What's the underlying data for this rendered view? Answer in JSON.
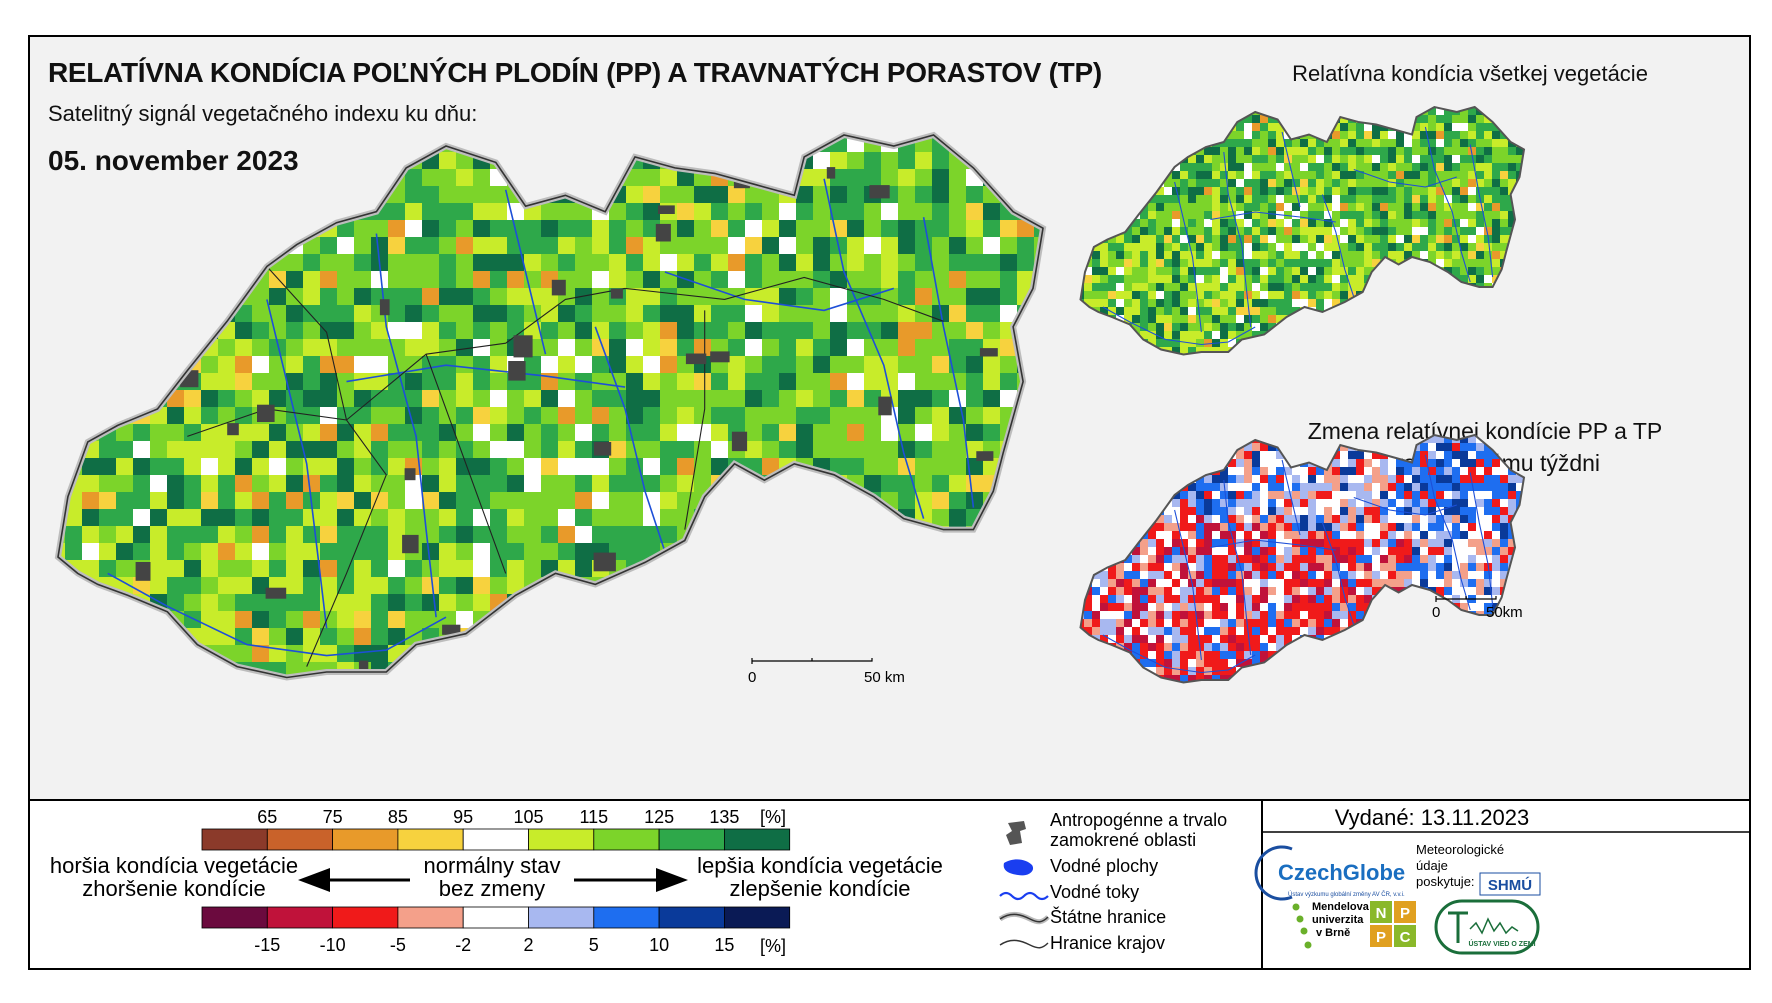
{
  "header": {
    "title": "RELATÍVNA KONDÍCIA POĽNÝCH PLODÍN (PP) A TRAVNATÝCH PORASTOV (TP)",
    "subtitle": "Satelitný signál vegetačného indexu ku dňu:",
    "date": "05. november 2023"
  },
  "insets": {
    "all_vegetation_title": "Relatívna kondícia všetkej vegetácie",
    "change_title_line1": "Zmena relatívnej kondície PP a TP",
    "change_title_line2": "oproti minulému týždni"
  },
  "scalebars": {
    "main": {
      "start": "0",
      "end": "50 km"
    },
    "inset": {
      "start": "0",
      "end": "50km"
    }
  },
  "legend": {
    "condition_ticks": [
      "65",
      "75",
      "85",
      "95",
      "105",
      "115",
      "125",
      "135"
    ],
    "condition_unit": "[%]",
    "condition_colors": [
      "#8b3a2a",
      "#c9622a",
      "#e89a2a",
      "#f7d23e",
      "#ffffff",
      "#c8ec2a",
      "#7cd42a",
      "#2ea84a",
      "#0f6e45"
    ],
    "change_ticks": [
      "-15",
      "-10",
      "-5",
      "-2",
      "2",
      "5",
      "10",
      "15"
    ],
    "change_unit": "[%]",
    "change_colors": [
      "#6b0a3e",
      "#c0123a",
      "#f01a1a",
      "#f4a08a",
      "#ffffff",
      "#a8b8f0",
      "#1e6ef0",
      "#0a3a9a",
      "#0a1a55"
    ],
    "left_line1": "horšia kondícia vegetácie",
    "left_line2": "zhoršenie kondície",
    "center_line1": "normálny stav",
    "center_line2": "bez zmeny",
    "right_line1": "lepšia kondícia vegetácie",
    "right_line2": "zlepšenie kondície"
  },
  "symbols": {
    "urban_line1": "Antropogénne a trvalo",
    "urban_line2": "zamokrené oblasti",
    "water_bodies": "Vodné plochy",
    "rivers": "Vodné toky",
    "state_border": "Štátne hranice",
    "region_border": "Hranice krajov"
  },
  "issued": "Vydané: 13.11.2023",
  "logos": {
    "czechglobe": "CzechGlobe",
    "czechglobe_sub": "Ústav výzkumu globální změny AV ČR, v.v.i.",
    "meteo_line1": "Meteorologické",
    "meteo_line2": "údaje",
    "meteo_line3": "poskytuje:",
    "shmu": "SHMÚ",
    "mendel_line1": "Mendelova",
    "mendel_line2": "univerzita",
    "mendel_line3": "v Brně",
    "nppc_letters": [
      "N",
      "P",
      "P",
      "C"
    ],
    "uvz": "ÚSTAV VIED O ZEMI"
  }
}
